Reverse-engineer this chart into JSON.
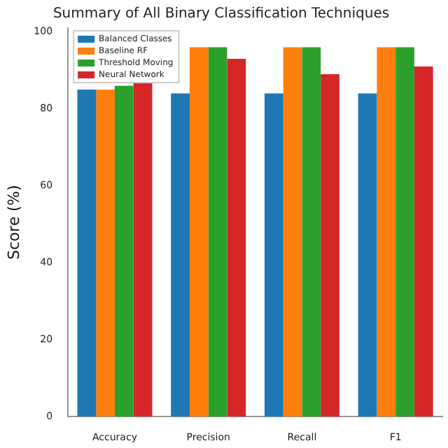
{
  "chart_data": {
    "type": "bar",
    "title": "Summary of All Binary Classification Techniques",
    "ylabel": "Score (%)",
    "categories": [
      "Accuracy",
      "Precision",
      "Recall",
      "F1"
    ],
    "series": [
      {
        "name": "Balanced Classes",
        "color": "#1f77b4",
        "values": [
          85,
          84,
          84,
          84
        ]
      },
      {
        "name": "Baseline RF",
        "color": "#ff7f0e",
        "values": [
          85,
          96,
          96,
          96
        ]
      },
      {
        "name": "Threshold Moving",
        "color": "#2ca02c",
        "values": [
          86,
          96,
          96,
          96
        ]
      },
      {
        "name": "Neural Network",
        "color": "#d62728",
        "values": [
          87,
          93,
          89,
          91
        ]
      }
    ],
    "ylim": [
      0,
      101
    ],
    "yticks": [
      0,
      20,
      40,
      60,
      80,
      100
    ],
    "grid": false,
    "legend": "top left"
  }
}
